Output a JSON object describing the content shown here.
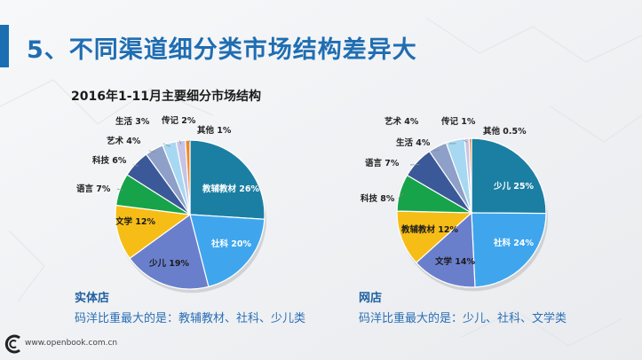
{
  "slide": {
    "title": "5、不同渠道细分类市场结构差异大",
    "subtitle": "2016年1-11月主要细分市场结构",
    "footer_url": "www.openbook.com.cn"
  },
  "captions": [
    {
      "head": "实体店",
      "body": "码洋比重最大的是：教辅教材、社科、少儿类"
    },
    {
      "head": "网店",
      "body": "码洋比重最大的是：少儿、社科、文学类"
    }
  ],
  "colors": {
    "title": "#1f6db2",
    "teal": "#1b7fa3",
    "skyblue": "#3fa6ee",
    "periwinkle": "#6a7fcc",
    "gold": "#f6bd16",
    "green": "#17a34a",
    "navy": "#3b5998",
    "steel": "#8e9fc8",
    "lightblue": "#a6d8f2",
    "lavender": "#c7c3e6",
    "orange": "#f08a2c"
  },
  "chart_data": [
    {
      "type": "pie",
      "title": "实体店",
      "slices": [
        {
          "name": "教辅教材",
          "value": 26,
          "label": "教辅教材 26%",
          "color": "#1b7fa3"
        },
        {
          "name": "社科",
          "value": 20,
          "label": "社科 20%",
          "color": "#3fa6ee"
        },
        {
          "name": "少儿",
          "value": 19,
          "label": "少儿 19%",
          "color": "#6a7fcc"
        },
        {
          "name": "文学",
          "value": 12,
          "label": "文学 12%",
          "color": "#f6bd16"
        },
        {
          "name": "语言",
          "value": 7,
          "label": "语言 7%",
          "color": "#17a34a"
        },
        {
          "name": "科技",
          "value": 6,
          "label": "科技 6%",
          "color": "#3b5998"
        },
        {
          "name": "艺术",
          "value": 4,
          "label": "艺术 4%",
          "color": "#8e9fc8"
        },
        {
          "name": "生活",
          "value": 3,
          "label": "生活 3%",
          "color": "#a6d8f2"
        },
        {
          "name": "传记",
          "value": 2,
          "label": "传记 2%",
          "color": "#c7c3e6"
        },
        {
          "name": "其他",
          "value": 1,
          "label": "其他 1%",
          "color": "#f08a2c"
        }
      ]
    },
    {
      "type": "pie",
      "title": "网店",
      "slices": [
        {
          "name": "少儿",
          "value": 25,
          "label": "少儿 25%",
          "color": "#1b7fa3"
        },
        {
          "name": "社科",
          "value": 24,
          "label": "社科 24%",
          "color": "#3fa6ee"
        },
        {
          "name": "文学",
          "value": 14,
          "label": "文学 14%",
          "color": "#6a7fcc"
        },
        {
          "name": "教辅教材",
          "value": 12,
          "label": "教辅教材 12%",
          "color": "#f6bd16"
        },
        {
          "name": "科技",
          "value": 8,
          "label": "科技 8%",
          "color": "#17a34a"
        },
        {
          "name": "语言",
          "value": 7,
          "label": "语言 7%",
          "color": "#3b5998"
        },
        {
          "name": "生活",
          "value": 4,
          "label": "生活 4%",
          "color": "#8e9fc8"
        },
        {
          "name": "艺术",
          "value": 4,
          "label": "艺术 4%",
          "color": "#a6d8f2"
        },
        {
          "name": "传记",
          "value": 1,
          "label": "传记 1%",
          "color": "#c7c3e6"
        },
        {
          "name": "其他",
          "value": 0.5,
          "label": "其他 0.5%",
          "color": "#f08a2c"
        }
      ]
    }
  ]
}
